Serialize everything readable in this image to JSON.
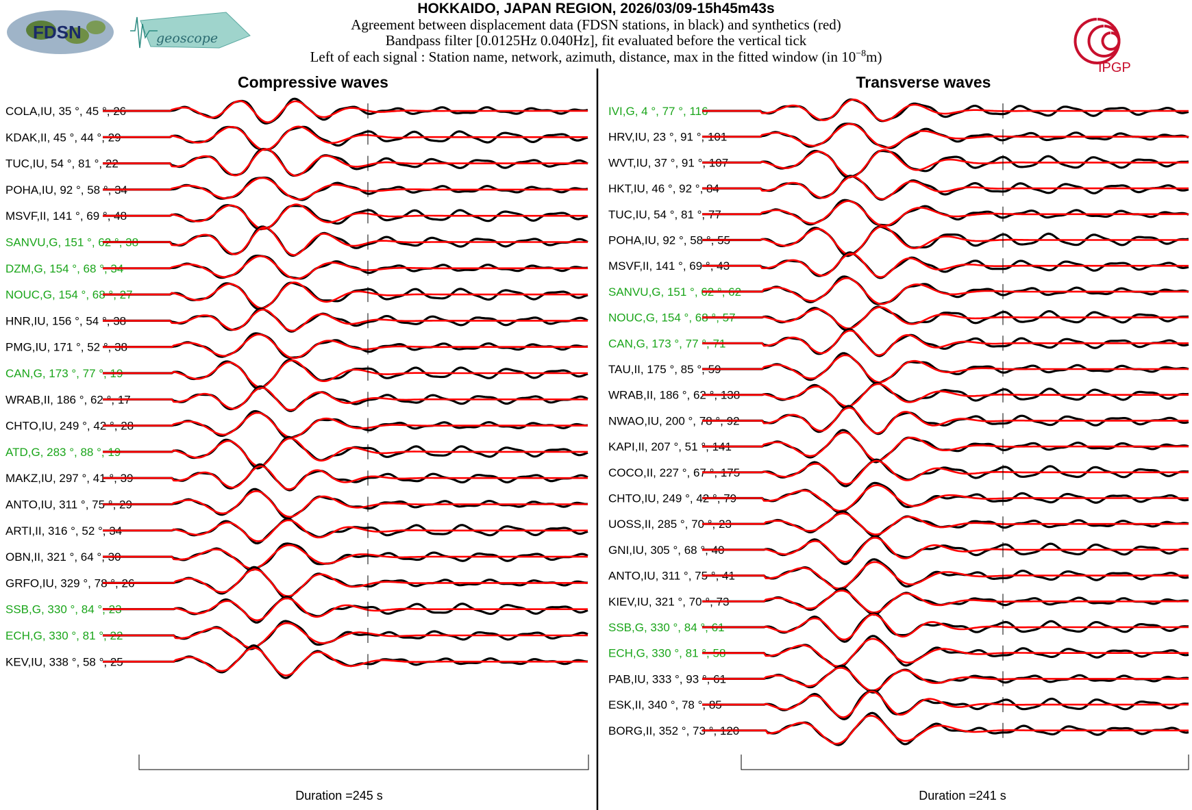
{
  "header": {
    "title": "HOKKAIDO, JAPAN REGION, 2026/03/09-15h45m43s",
    "line1": "Agreement between displacement data (FDSN stations, in black) and synthetics (red)",
    "line2": "Bandpass filter [0.0125Hz 0.040Hz], fit evaluated before the vertical tick",
    "line3_prefix": "Left of each signal : Station name, network, azimuth, distance, max in the fitted window (in 10",
    "line3_exp": "−8",
    "line3_suffix": "m)"
  },
  "logos": {
    "fdsn": "FDSN",
    "geoscope": "geoscope",
    "ipgp": "IPGP"
  },
  "colors": {
    "data": "#000000",
    "synthetic": "#ff0000",
    "geoscope_label": "#1aa51a",
    "other_label": "#000000"
  },
  "chart_data": [
    {
      "type": "line",
      "title": "Compressive waves",
      "duration_label": "Duration =245 s",
      "duration_s": 245,
      "series_legend": [
        "data (black)",
        "synthetics (red)"
      ],
      "stations": [
        {
          "label": "COLA,IU, 35 °, 45 °, 26",
          "network": "IU",
          "azimuth": 35,
          "distance": 45,
          "max": 26
        },
        {
          "label": "KDAK,II, 45 °, 44 °, 29",
          "network": "II",
          "azimuth": 45,
          "distance": 44,
          "max": 29
        },
        {
          "label": "TUC,IU, 54 °, 81 °, 22",
          "network": "IU",
          "azimuth": 54,
          "distance": 81,
          "max": 22
        },
        {
          "label": "POHA,IU, 92 °, 58 °, 34",
          "network": "IU",
          "azimuth": 92,
          "distance": 58,
          "max": 34
        },
        {
          "label": "MSVF,II, 141 °, 69 °, 48",
          "network": "II",
          "azimuth": 141,
          "distance": 69,
          "max": 48
        },
        {
          "label": "SANVU,G, 151 °, 62 °, 38",
          "network": "G",
          "azimuth": 151,
          "distance": 62,
          "max": 38
        },
        {
          "label": "DZM,G, 154 °, 68 °, 34",
          "network": "G",
          "azimuth": 154,
          "distance": 68,
          "max": 34
        },
        {
          "label": "NOUC,G, 154 °, 68 °, 27",
          "network": "G",
          "azimuth": 154,
          "distance": 68,
          "max": 27
        },
        {
          "label": "HNR,IU, 156 °, 54 °, 38",
          "network": "IU",
          "azimuth": 156,
          "distance": 54,
          "max": 38
        },
        {
          "label": "PMG,IU, 171 °, 52 °, 38",
          "network": "IU",
          "azimuth": 171,
          "distance": 52,
          "max": 38
        },
        {
          "label": "CAN,G, 173 °, 77 °, 19",
          "network": "G",
          "azimuth": 173,
          "distance": 77,
          "max": 19
        },
        {
          "label": "WRAB,II, 186 °, 62 °, 17",
          "network": "II",
          "azimuth": 186,
          "distance": 62,
          "max": 17
        },
        {
          "label": "CHTO,IU, 249 °, 42 °, 28",
          "network": "IU",
          "azimuth": 249,
          "distance": 42,
          "max": 28
        },
        {
          "label": "ATD,G, 283 °, 88 °, 19",
          "network": "G",
          "azimuth": 283,
          "distance": 88,
          "max": 19
        },
        {
          "label": "MAKZ,IU, 297 °, 41 °, 39",
          "network": "IU",
          "azimuth": 297,
          "distance": 41,
          "max": 39
        },
        {
          "label": "ANTO,IU, 311 °, 75 °, 29",
          "network": "IU",
          "azimuth": 311,
          "distance": 75,
          "max": 29
        },
        {
          "label": "ARTI,II, 316 °, 52 °, 34",
          "network": "II",
          "azimuth": 316,
          "distance": 52,
          "max": 34
        },
        {
          "label": "OBN,II, 321 °, 64 °, 30",
          "network": "II",
          "azimuth": 321,
          "distance": 64,
          "max": 30
        },
        {
          "label": "GRFO,IU, 329 °, 78 °, 26",
          "network": "IU",
          "azimuth": 329,
          "distance": 78,
          "max": 26
        },
        {
          "label": "SSB,G, 330 °, 84 °, 23",
          "network": "G",
          "azimuth": 330,
          "distance": 84,
          "max": 23
        },
        {
          "label": "ECH,G, 330 °, 81 °, 22",
          "network": "G",
          "azimuth": 330,
          "distance": 81,
          "max": 22
        },
        {
          "label": "KEV,IU, 338 °, 58 °, 25",
          "network": "IU",
          "azimuth": 338,
          "distance": 58,
          "max": 25
        }
      ]
    },
    {
      "type": "line",
      "title": "Transverse waves",
      "duration_label": "Duration =241 s",
      "duration_s": 241,
      "series_legend": [
        "data (black)",
        "synthetics (red)"
      ],
      "stations": [
        {
          "label": "IVI,G, 4 °, 77 °, 116",
          "network": "G",
          "azimuth": 4,
          "distance": 77,
          "max": 116
        },
        {
          "label": "HRV,IU, 23 °, 91 °, 101",
          "network": "IU",
          "azimuth": 23,
          "distance": 91,
          "max": 101
        },
        {
          "label": "WVT,IU, 37 °, 91 °, 107",
          "network": "IU",
          "azimuth": 37,
          "distance": 91,
          "max": 107
        },
        {
          "label": "HKT,IU, 46 °, 92 °, 84",
          "network": "IU",
          "azimuth": 46,
          "distance": 92,
          "max": 84
        },
        {
          "label": "TUC,IU, 54 °, 81 °, 77",
          "network": "IU",
          "azimuth": 54,
          "distance": 81,
          "max": 77
        },
        {
          "label": "POHA,IU, 92 °, 58 °, 55",
          "network": "IU",
          "azimuth": 92,
          "distance": 58,
          "max": 55
        },
        {
          "label": "MSVF,II, 141 °, 69 °, 43",
          "network": "II",
          "azimuth": 141,
          "distance": 69,
          "max": 43
        },
        {
          "label": "SANVU,G, 151 °, 62 °, 62",
          "network": "G",
          "azimuth": 151,
          "distance": 62,
          "max": 62
        },
        {
          "label": "NOUC,G, 154 °, 68 °, 57",
          "network": "G",
          "azimuth": 154,
          "distance": 68,
          "max": 57
        },
        {
          "label": "CAN,G, 173 °, 77 °, 71",
          "network": "G",
          "azimuth": 173,
          "distance": 77,
          "max": 71
        },
        {
          "label": "TAU,II, 175 °, 85 °, 59",
          "network": "II",
          "azimuth": 175,
          "distance": 85,
          "max": 59
        },
        {
          "label": "WRAB,II, 186 °, 62 °, 138",
          "network": "II",
          "azimuth": 186,
          "distance": 62,
          "max": 138
        },
        {
          "label": "NWAO,IU, 200 °, 78 °, 92",
          "network": "IU",
          "azimuth": 200,
          "distance": 78,
          "max": 92
        },
        {
          "label": "KAPI,II, 207 °, 51 °, 141",
          "network": "II",
          "azimuth": 207,
          "distance": 51,
          "max": 141
        },
        {
          "label": "COCO,II, 227 °, 67 °, 175",
          "network": "II",
          "azimuth": 227,
          "distance": 67,
          "max": 175
        },
        {
          "label": "CHTO,IU, 249 °, 42 °, 79",
          "network": "IU",
          "azimuth": 249,
          "distance": 42,
          "max": 79
        },
        {
          "label": "UOSS,II, 285 °, 70 °, 23",
          "network": "II",
          "azimuth": 285,
          "distance": 70,
          "max": 23
        },
        {
          "label": "GNI,IU, 305 °, 68 °, 40",
          "network": "IU",
          "azimuth": 305,
          "distance": 68,
          "max": 40
        },
        {
          "label": "ANTO,IU, 311 °, 75 °, 41",
          "network": "IU",
          "azimuth": 311,
          "distance": 75,
          "max": 41
        },
        {
          "label": "KIEV,IU, 321 °, 70 °, 73",
          "network": "IU",
          "azimuth": 321,
          "distance": 70,
          "max": 73
        },
        {
          "label": "SSB,G, 330 °, 84 °, 61",
          "network": "G",
          "azimuth": 330,
          "distance": 84,
          "max": 61
        },
        {
          "label": "ECH,G, 330 °, 81 °, 58",
          "network": "G",
          "azimuth": 330,
          "distance": 81,
          "max": 58
        },
        {
          "label": "PAB,IU, 333 °, 93 °, 61",
          "network": "IU",
          "azimuth": 333,
          "distance": 93,
          "max": 61
        },
        {
          "label": "ESK,II, 340 °, 78 °, 85",
          "network": "II",
          "azimuth": 340,
          "distance": 78,
          "max": 85
        },
        {
          "label": "BORG,II, 352 °, 73 °, 120",
          "network": "II",
          "azimuth": 352,
          "distance": 73,
          "max": 120
        }
      ]
    }
  ]
}
